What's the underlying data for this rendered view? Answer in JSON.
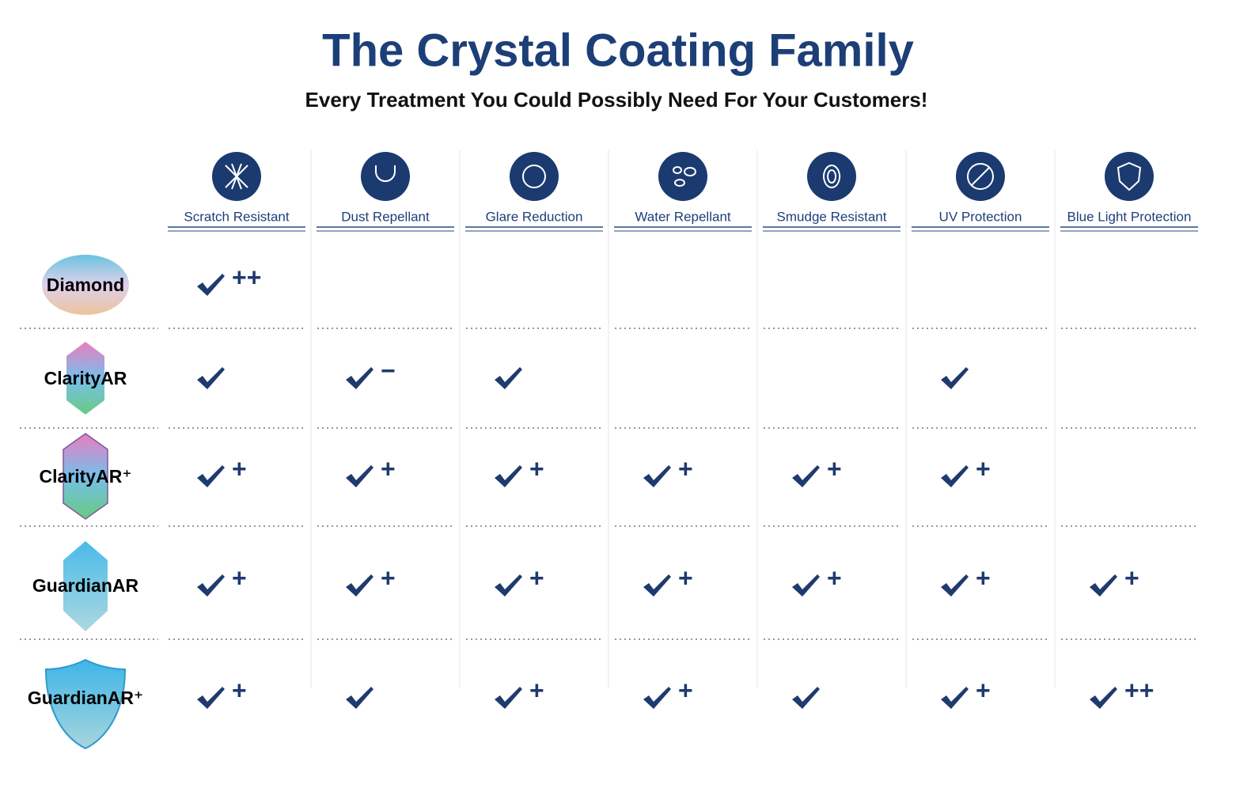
{
  "header": {
    "title": "The Crystal Coating Family",
    "subtitle": "Every Treatment You Could Possibly Need For Your Customers!"
  },
  "table": {
    "columns": [
      "Scratch Resistant",
      "Dust Repellant",
      "Glare Reduction",
      "Water Repellant",
      "Smudge Resistant",
      "UV Protection",
      "Blue Light Protection"
    ],
    "rows": [
      {
        "name": "Diamond",
        "cells": [
          {
            "check": true,
            "mod": "++"
          },
          null,
          null,
          null,
          null,
          null,
          null
        ]
      },
      {
        "name": "ClarityAR",
        "cells": [
          {
            "check": true
          },
          {
            "check": true,
            "mod": "−"
          },
          {
            "check": true
          },
          null,
          null,
          {
            "check": true
          },
          null
        ]
      },
      {
        "name": "ClarityAR⁺",
        "cells": [
          {
            "check": true,
            "mod": "+"
          },
          {
            "check": true,
            "mod": "+"
          },
          {
            "check": true,
            "mod": "+"
          },
          {
            "check": true,
            "mod": "+"
          },
          {
            "check": true,
            "mod": "+"
          },
          {
            "check": true,
            "mod": "+"
          },
          null
        ]
      },
      {
        "name": "GuardianAR",
        "cells": [
          {
            "check": true,
            "mod": "+"
          },
          {
            "check": true,
            "mod": "+"
          },
          {
            "check": true,
            "mod": "+"
          },
          {
            "check": true,
            "mod": "+"
          },
          {
            "check": true,
            "mod": "+"
          },
          {
            "check": true,
            "mod": "+"
          },
          {
            "check": true,
            "mod": "+"
          }
        ]
      },
      {
        "name": "GuardianAR⁺",
        "cells": [
          {
            "check": true,
            "mod": "+"
          },
          {
            "check": true
          },
          {
            "check": true,
            "mod": "+"
          },
          {
            "check": true,
            "mod": "+"
          },
          {
            "check": true
          },
          {
            "check": true,
            "mod": "+"
          },
          {
            "check": true,
            "mod": "++"
          }
        ]
      }
    ]
  }
}
